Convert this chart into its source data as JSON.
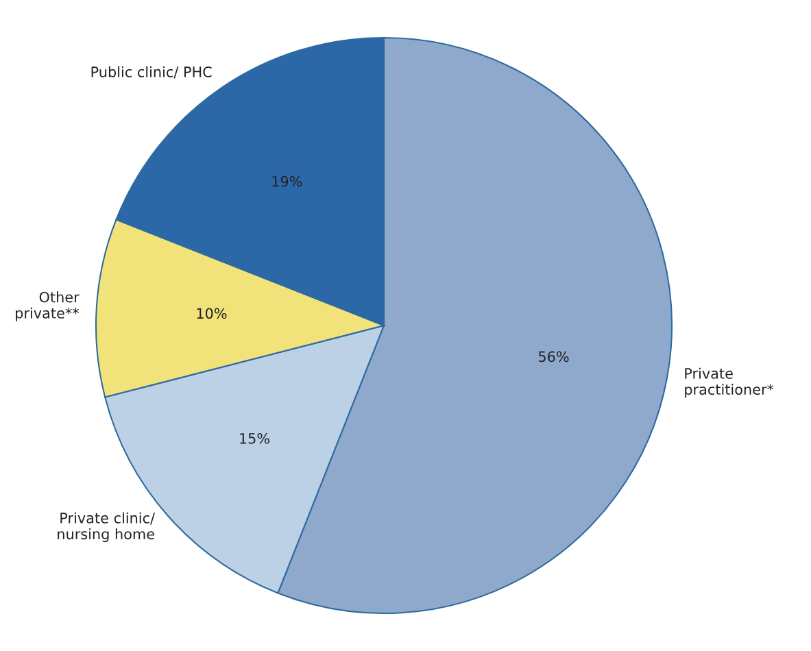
{
  "chart_data": {
    "type": "pie",
    "categories": [
      "Private\npractitioner*",
      "Private clinic/\nnursing home",
      "Other\nprivate**",
      "Public clinic/ PHC"
    ],
    "values": [
      56,
      15,
      10,
      19
    ],
    "colors": [
      "#8fa9cc",
      "#bcd0e6",
      "#f2e27a",
      "#2c68a8"
    ],
    "value_labels": [
      "56%",
      "15%",
      "10%",
      "19%"
    ]
  }
}
